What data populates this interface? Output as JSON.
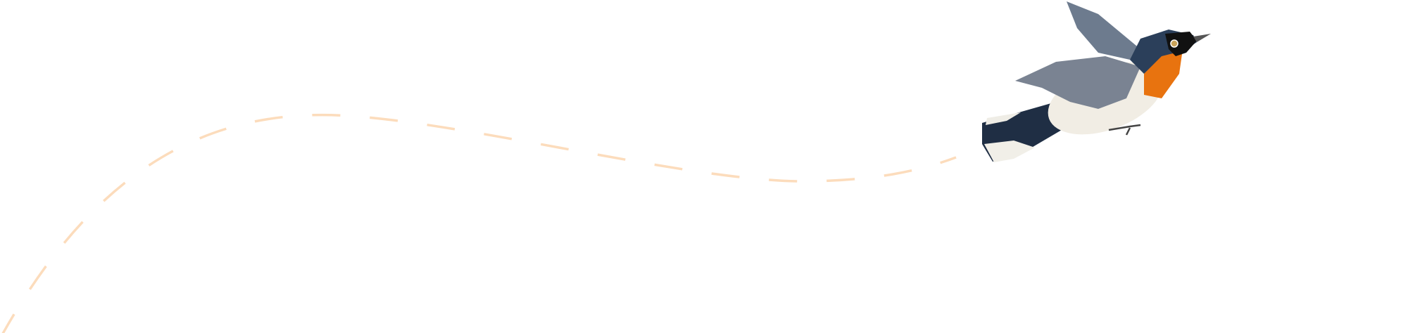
{
  "colors": {
    "background": "#ffffff",
    "flight_path": "#fcdcbc",
    "bird_throat": "#e8730f",
    "bird_head": "#2b3f5a",
    "bird_wing": "#7a8392",
    "bird_belly": "#f1ede4"
  },
  "icons": {
    "illustration": "bird-icon",
    "path": "dashed-flight-path"
  }
}
